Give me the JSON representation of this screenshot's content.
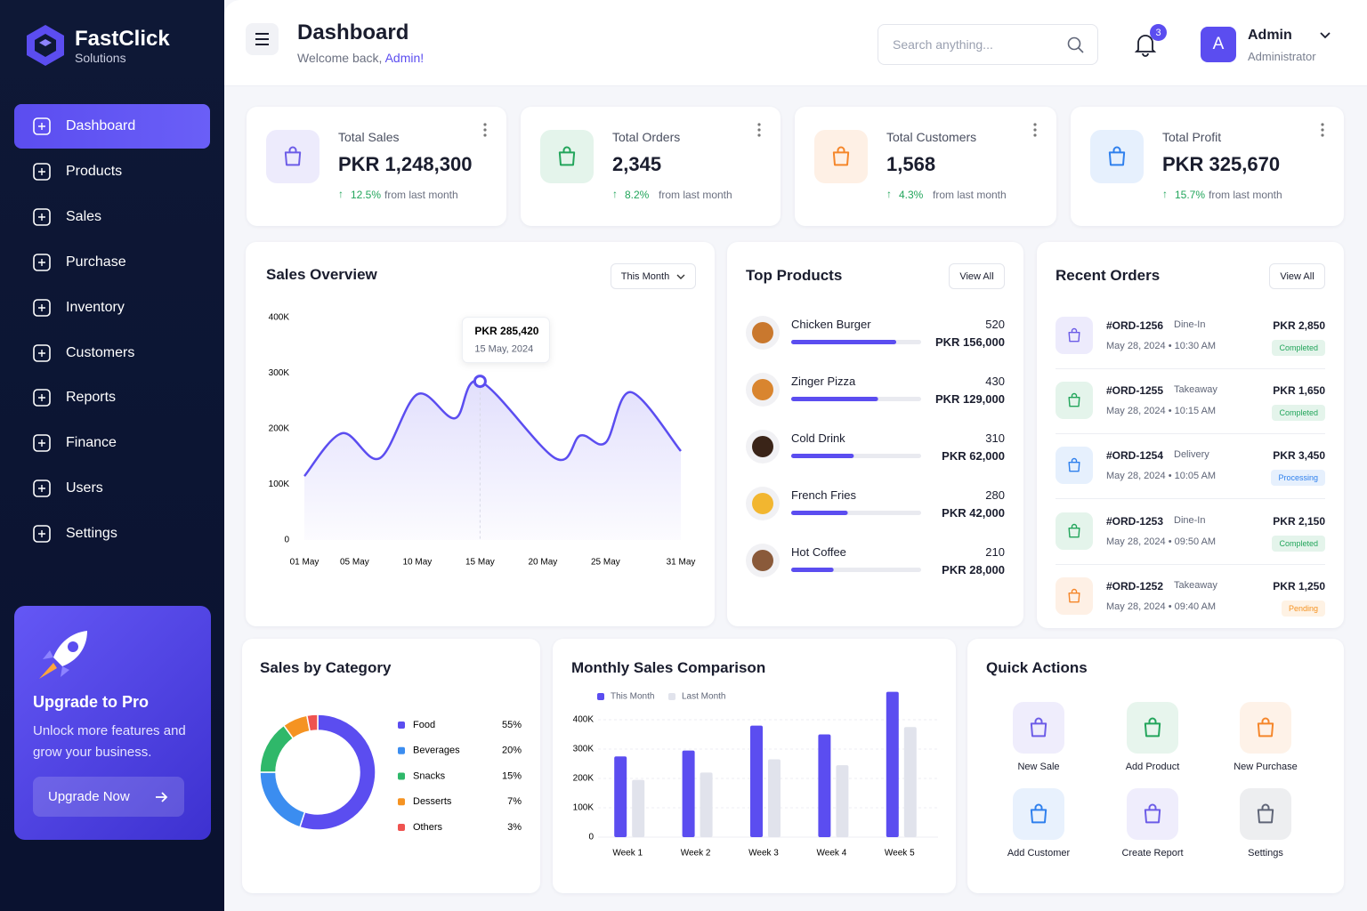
{
  "sidebar": {
    "brand": "FastClick",
    "tagline": "Solutions",
    "nav": [
      "Dashboard",
      "Products",
      "Sales",
      "Purchase",
      "Inventory",
      "Customers",
      "Reports",
      "Finance",
      "Users",
      "Settings"
    ],
    "upgrade": {
      "title": "Upgrade to Pro",
      "text": "Unlock more features and grow your business.",
      "button": "Upgrade Now"
    }
  },
  "header": {
    "title": "Dashboard",
    "welcome": "Welcome back,",
    "user_link": "Admin!",
    "search": "Search anything...",
    "notifications": 3,
    "user": {
      "initial": "A",
      "name": "Admin",
      "role": "Administrator"
    }
  },
  "stats": [
    {
      "label": "Total Sales",
      "value": "PKR 1,248,300",
      "change": "12.5%",
      "note": "from last month",
      "color": "#6c5ce7"
    },
    {
      "label": "Total Orders",
      "value": "2,345",
      "change": "8.2%",
      "note": "from last month",
      "color": "#22a55b"
    },
    {
      "label": "Total Customers",
      "value": "1,568",
      "change": "4.3%",
      "note": "from last month",
      "color": "#f5862a"
    },
    {
      "label": "Total Profit",
      "value": "PKR 325,670",
      "change": "15.7%",
      "note": "from last month",
      "color": "#2f80ed"
    }
  ],
  "top_products": {
    "title": "Top Products",
    "button": "View All",
    "items": [
      {
        "name": "Chicken Burger",
        "qty": 520,
        "revenue": "PKR 156,000"
      },
      {
        "name": "Zinger Pizza",
        "qty": 430,
        "revenue": "PKR 129,000"
      },
      {
        "name": "Cold Drink",
        "qty": 310,
        "revenue": "PKR 62,000"
      },
      {
        "name": "French Fries",
        "qty": 280,
        "revenue": "PKR 42,000"
      },
      {
        "name": "Hot Coffee",
        "qty": 210,
        "revenue": "PKR 28,000"
      }
    ]
  },
  "recent_orders": {
    "title": "Recent Orders",
    "button": "View All",
    "items": [
      {
        "id": "#ORD-1256",
        "type": "Dine-In",
        "time": "May 28, 2024 • 10:30 AM",
        "amount": "PKR 2,850",
        "status": "Completed",
        "color": "#6c5ce7",
        "status_color": "#22a55b"
      },
      {
        "id": "#ORD-1255",
        "type": "Takeaway",
        "time": "May 28, 2024 • 10:15 AM",
        "amount": "PKR 1,650",
        "status": "Completed",
        "color": "#22a55b",
        "status_color": "#22a55b"
      },
      {
        "id": "#ORD-1254",
        "type": "Delivery",
        "time": "May 28, 2024 • 10:05 AM",
        "amount": "PKR 3,450",
        "status": "Processing",
        "color": "#2f80ed",
        "status_color": "#2f80ed"
      },
      {
        "id": "#ORD-1253",
        "type": "Dine-In",
        "time": "May 28, 2024 • 09:50 AM",
        "amount": "PKR 2,150",
        "status": "Completed",
        "color": "#22a55b",
        "status_color": "#22a55b"
      },
      {
        "id": "#ORD-1252",
        "type": "Takeaway",
        "time": "May 28, 2024 • 09:40 AM",
        "amount": "PKR 1,250",
        "status": "Pending",
        "color": "#f5862a",
        "status_color": "#f59322"
      }
    ]
  },
  "quick_actions": {
    "title": "Quick Actions",
    "items": [
      {
        "label": "New Sale",
        "color": "#6c5ce7"
      },
      {
        "label": "Add Product",
        "color": "#22a55b"
      },
      {
        "label": "New Purchase",
        "color": "#f5862a"
      },
      {
        "label": "Add Customer",
        "color": "#2f80ed"
      },
      {
        "label": "Create Report",
        "color": "#6c5ce7"
      },
      {
        "label": "Settings",
        "color": "#5f6577"
      }
    ]
  },
  "chart_data": [
    {
      "type": "line",
      "title": "Sales Overview",
      "filter": "This Month",
      "color": "#5b4df0",
      "x": [
        1,
        4,
        7,
        10,
        13,
        15,
        21,
        23,
        25,
        27,
        31
      ],
      "values": [
        115000,
        192000,
        147000,
        262000,
        219000,
        285420,
        147000,
        188000,
        175000,
        266000,
        160000
      ],
      "xlim": [
        1,
        31
      ],
      "xticks": [
        {
          "value": 1,
          "label": "01 May"
        },
        {
          "value": 5,
          "label": "05 May"
        },
        {
          "value": 10,
          "label": "10 May"
        },
        {
          "value": 15,
          "label": "15 May"
        },
        {
          "value": 20,
          "label": "20 May"
        },
        {
          "value": 25,
          "label": "25 May"
        },
        {
          "value": 31,
          "label": "31 May"
        }
      ],
      "ylim": [
        0,
        400000
      ],
      "yticks": [
        0,
        {
          "value": 100000,
          "label": "100K"
        },
        {
          "value": 200000,
          "label": "200K"
        },
        {
          "value": 300000,
          "label": "300K"
        },
        {
          "value": 400000,
          "label": "400K"
        }
      ],
      "annotation": {
        "value": "PKR 285,420",
        "date": "15 May, 2024"
      }
    },
    {
      "type": "pie",
      "title": "Sales by Category",
      "categories": [
        "Food",
        "Beverages",
        "Snacks",
        "Desserts",
        "Others"
      ],
      "values": [
        55,
        20,
        15,
        7,
        3
      ],
      "value_labels": [
        "55%",
        "20%",
        "15%",
        "7%",
        "3%"
      ],
      "colors": [
        "#5b4df0",
        "#3b8df0",
        "#2fb86a",
        "#f59322",
        "#ef5350"
      ]
    },
    {
      "type": "bar",
      "title": "Monthly Sales Comparison",
      "categories": [
        "Week 1",
        "Week 2",
        "Week 3",
        "Week 4",
        "Week 5"
      ],
      "series": [
        {
          "name": "This Month",
          "color": "#5b4df0",
          "values": [
            275000,
            295000,
            380000,
            350000,
            495000
          ]
        },
        {
          "name": "Last Month",
          "color": "#e1e3ec",
          "values": [
            195000,
            220000,
            265000,
            245000,
            375000
          ]
        }
      ],
      "ylim": [
        0,
        500000
      ],
      "yticks": [
        0,
        {
          "value": 100000,
          "label": "100K"
        },
        {
          "value": 200000,
          "label": "200K"
        },
        {
          "value": 300000,
          "label": "300K"
        },
        {
          "value": 400000,
          "label": "400K"
        }
      ]
    }
  ]
}
